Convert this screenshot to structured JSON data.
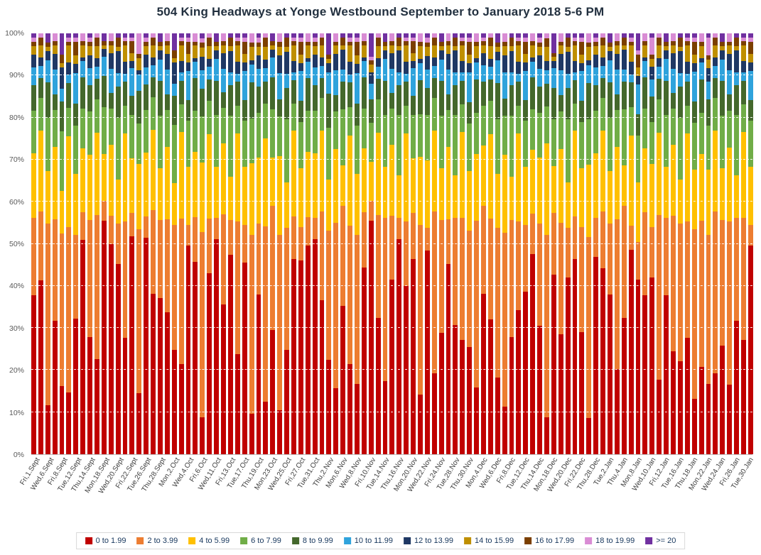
{
  "chart_data": {
    "type": "bar",
    "stacked_percent": true,
    "title": "504 King Headways at Yonge Westbound September to January 2018 5-6 PM",
    "categories": [
      "0 to 1.99",
      "2 to 3.99",
      "4 to 5.99",
      "6 to 7.99",
      "8 to 9.99",
      "10 to 11.99",
      "12 to 13.99",
      "14 to 15.99",
      "16 to 17.99",
      "18 to 19.99",
      ">= 20"
    ],
    "colors": [
      "#C00000",
      "#ED7D31",
      "#FFC000",
      "#70AD47",
      "#44682C",
      "#2FA3DC",
      "#1F3864",
      "#BF8F00",
      "#7B3F00",
      "#D98CD4",
      "#7030A0"
    ],
    "ylabel": "",
    "xlabel": "",
    "ylim": [
      0,
      100
    ],
    "grid": "dashed-white-horizontal",
    "legend_position": "bottom",
    "y_tick_labels": [
      "0%",
      "10%",
      "20%",
      "30%",
      "40%",
      "50%",
      "60%",
      "70%",
      "80%",
      "90%",
      "100%"
    ],
    "x_label_every": 2,
    "x_tick_labels": [
      "Fri,1.Sept",
      "Wed,6.Sept",
      "Fri,8.Sept",
      "Tue,12.Sept",
      "Thu,14.Sept",
      "Mon,18.Sept",
      "Wed,20.Sept",
      "Fri,22.Sept",
      "Tue,26.Sept",
      "Thu,28.Sept",
      "Mon,2.Oct",
      "Wed,4.Oct",
      "Fri,6.Oct",
      "Wed,11.Oct",
      "Fri,13.Oct",
      "Tue,17.Oct",
      "Thu,19.Oct",
      "Mon,23.Oct",
      "Wed,25.Oct",
      "Fri,27.Oct",
      "Tue,31.Oct",
      "Thu,2.Nov",
      "Mon,6.Nov",
      "Wed,8.Nov",
      "Fri,10.Nov",
      "Tue,14.Nov",
      "Thu,16.Nov",
      "Mon,20.Nov",
      "Wed,22.Nov",
      "Fri,24.Nov",
      "Tue,28.Nov",
      "Thu,30.Nov",
      "Mon,4.Dec",
      "Wed,6.Dec",
      "Fri,8.Dec",
      "Tue,12.Dec",
      "Thu,14.Dec",
      "Mon,18.Dec",
      "Wed,20.Dec",
      "Fri,22.Dec",
      "Thu,28.Dec",
      "Tue,2.Jan",
      "Thu,4.Jan",
      "Mon,8.Jan",
      "Wed,10.Jan",
      "Fri,12.Jan",
      "Tue,16.Jan",
      "Thu,18.Jan",
      "Mon,22.Jan",
      "Wed,24.Jan",
      "Fri,26.Jan",
      "Tue,30.Jan"
    ],
    "bars": [
      [
        37,
        18,
        15,
        10,
        6,
        4,
        3,
        2,
        1,
        1,
        1
      ],
      [
        43,
        17,
        20,
        8,
        5,
        3,
        2,
        3,
        2,
        1,
        0
      ],
      [
        11,
        41,
        12,
        12,
        8,
        5,
        2,
        1,
        1,
        0,
        2
      ],
      [
        33,
        25,
        18,
        9,
        4,
        6,
        4,
        2,
        1,
        2,
        0
      ],
      [
        16,
        36,
        10,
        14,
        7,
        3,
        5,
        1,
        2,
        0,
        5
      ],
      [
        15,
        40,
        22,
        7,
        6,
        2,
        3,
        4,
        1,
        1,
        1
      ],
      [
        31,
        19,
        14,
        11,
        5,
        7,
        2,
        2,
        3,
        1,
        1
      ],
      [
        54,
        7,
        16,
        10,
        8,
        4,
        1,
        3,
        1,
        2,
        0
      ],
      [
        27,
        27,
        15,
        10,
        6,
        4,
        3,
        2,
        1,
        1,
        1
      ],
      [
        23,
        35,
        20,
        8,
        5,
        3,
        2,
        3,
        2,
        1,
        0
      ],
      [
        60,
        5,
        12,
        12,
        8,
        5,
        2,
        1,
        1,
        0,
        2
      ],
      [
        53,
        7,
        18,
        9,
        4,
        6,
        4,
        2,
        1,
        2,
        0
      ],
      [
        43,
        9,
        10,
        14,
        7,
        3,
        5,
        1,
        2,
        0,
        1
      ],
      [
        29,
        29,
        22,
        7,
        6,
        2,
        3,
        4,
        1,
        1,
        1
      ],
      [
        56,
        6,
        14,
        11,
        5,
        7,
        2,
        2,
        3,
        1,
        1
      ],
      [
        15,
        40,
        16,
        10,
        8,
        4,
        1,
        3,
        1,
        5,
        0
      ],
      [
        51,
        5,
        15,
        10,
        6,
        4,
        3,
        2,
        1,
        1,
        1
      ],
      [
        40,
        21,
        20,
        8,
        5,
        3,
        2,
        3,
        2,
        1,
        0
      ],
      [
        36,
        18,
        12,
        12,
        8,
        5,
        2,
        1,
        1,
        0,
        2
      ],
      [
        35,
        23,
        18,
        9,
        4,
        6,
        4,
        2,
        1,
        2,
        0
      ],
      [
        25,
        30,
        10,
        14,
        7,
        3,
        5,
        1,
        2,
        0,
        4
      ],
      [
        23,
        37,
        22,
        7,
        6,
        2,
        3,
        4,
        1,
        1,
        1
      ],
      [
        50,
        5,
        14,
        11,
        5,
        7,
        2,
        2,
        3,
        1,
        1
      ],
      [
        47,
        11,
        16,
        10,
        8,
        4,
        1,
        3,
        1,
        2,
        0
      ],
      [
        8,
        40,
        15,
        10,
        6,
        4,
        3,
        2,
        1,
        1,
        1
      ],
      [
        43,
        13,
        20,
        8,
        5,
        3,
        2,
        3,
        2,
        1,
        0
      ],
      [
        50,
        5,
        12,
        12,
        8,
        5,
        2,
        1,
        1,
        0,
        2
      ],
      [
        38,
        23,
        18,
        9,
        4,
        6,
        4,
        2,
        1,
        2,
        0
      ],
      [
        46,
        8,
        10,
        14,
        7,
        3,
        5,
        1,
        2,
        0,
        1
      ],
      [
        25,
        33,
        22,
        7,
        6,
        2,
        3,
        4,
        1,
        1,
        1
      ],
      [
        46,
        9,
        14,
        11,
        5,
        7,
        2,
        2,
        3,
        1,
        1
      ],
      [
        9,
        40,
        16,
        10,
        8,
        4,
        1,
        3,
        1,
        2,
        0
      ],
      [
        36,
        16,
        15,
        10,
        6,
        4,
        3,
        2,
        1,
        1,
        1
      ],
      [
        12,
        40,
        20,
        8,
        5,
        3,
        2,
        3,
        2,
        1,
        0
      ],
      [
        31,
        31,
        12,
        12,
        8,
        5,
        2,
        1,
        1,
        0,
        2
      ],
      [
        10,
        40,
        18,
        9,
        4,
        6,
        4,
        2,
        1,
        2,
        0
      ],
      [
        23,
        27,
        10,
        14,
        7,
        3,
        5,
        1,
        2,
        0,
        1
      ],
      [
        50,
        11,
        22,
        7,
        6,
        2,
        3,
        4,
        1,
        1,
        1
      ],
      [
        46,
        8,
        14,
        11,
        5,
        7,
        2,
        2,
        3,
        1,
        1
      ],
      [
        51,
        7,
        16,
        10,
        8,
        4,
        1,
        3,
        1,
        2,
        0
      ],
      [
        50,
        5,
        15,
        10,
        6,
        4,
        3,
        2,
        1,
        1,
        1
      ],
      [
        38,
        22,
        20,
        8,
        5,
        3,
        2,
        3,
        2,
        1,
        0
      ],
      [
        22,
        30,
        12,
        12,
        8,
        5,
        2,
        1,
        1,
        0,
        5
      ],
      [
        16,
        40,
        18,
        9,
        4,
        6,
        4,
        2,
        1,
        2,
        0
      ],
      [
        37,
        25,
        10,
        14,
        7,
        3,
        5,
        1,
        2,
        0,
        1
      ],
      [
        22,
        34,
        22,
        7,
        6,
        2,
        3,
        4,
        1,
        1,
        1
      ],
      [
        16,
        34,
        14,
        11,
        5,
        7,
        2,
        2,
        3,
        1,
        1
      ],
      [
        47,
        14,
        16,
        10,
        8,
        4,
        1,
        3,
        1,
        2,
        0
      ],
      [
        60,
        5,
        10,
        10,
        6,
        4,
        3,
        2,
        1,
        1,
        6
      ],
      [
        33,
        25,
        20,
        8,
        5,
        3,
        2,
        3,
        2,
        1,
        0
      ],
      [
        17,
        38,
        12,
        12,
        8,
        5,
        2,
        1,
        1,
        0,
        2
      ],
      [
        44,
        16,
        18,
        9,
        4,
        6,
        4,
        2,
        1,
        2,
        0
      ],
      [
        50,
        5,
        10,
        14,
        7,
        3,
        5,
        1,
        2,
        0,
        1
      ],
      [
        42,
        16,
        22,
        7,
        6,
        2,
        3,
        4,
        1,
        1,
        1
      ],
      [
        50,
        12,
        14,
        11,
        5,
        7,
        2,
        2,
        3,
        1,
        1
      ],
      [
        14,
        40,
        16,
        10,
        8,
        4,
        1,
        3,
        1,
        2,
        0
      ],
      [
        45,
        5,
        15,
        10,
        6,
        4,
        3,
        2,
        1,
        1,
        1
      ],
      [
        20,
        40,
        20,
        8,
        5,
        3,
        2,
        3,
        2,
        1,
        0
      ],
      [
        28,
        26,
        12,
        12,
        8,
        5,
        2,
        1,
        1,
        0,
        2
      ],
      [
        47,
        11,
        18,
        9,
        4,
        6,
        4,
        2,
        1,
        2,
        0
      ],
      [
        30,
        25,
        10,
        14,
        7,
        3,
        5,
        1,
        2,
        0,
        1
      ],
      [
        29,
        31,
        22,
        7,
        6,
        2,
        3,
        4,
        1,
        1,
        1
      ],
      [
        25,
        27,
        14,
        11,
        5,
        7,
        2,
        2,
        3,
        1,
        1
      ],
      [
        16,
        40,
        16,
        10,
        8,
        4,
        1,
        3,
        1,
        2,
        0
      ],
      [
        40,
        22,
        15,
        10,
        6,
        4,
        3,
        2,
        1,
        1,
        1
      ],
      [
        32,
        24,
        20,
        8,
        5,
        3,
        2,
        3,
        2,
        1,
        0
      ],
      [
        17,
        33,
        12,
        12,
        8,
        5,
        2,
        1,
        1,
        0,
        2
      ],
      [
        11,
        40,
        18,
        9,
        4,
        6,
        4,
        2,
        1,
        2,
        0
      ],
      [
        27,
        27,
        10,
        14,
        7,
        3,
        5,
        1,
        2,
        0,
        1
      ],
      [
        36,
        22,
        22,
        7,
        6,
        2,
        3,
        4,
        1,
        1,
        1
      ],
      [
        39,
        16,
        14,
        11,
        5,
        7,
        2,
        2,
        3,
        1,
        1
      ],
      [
        50,
        10,
        16,
        10,
        8,
        4,
        1,
        3,
        1,
        2,
        0
      ],
      [
        29,
        23,
        15,
        10,
        6,
        4,
        3,
        2,
        1,
        1,
        1
      ],
      [
        8,
        40,
        20,
        8,
        5,
        3,
        2,
        3,
        2,
        1,
        0
      ],
      [
        46,
        16,
        12,
        12,
        8,
        5,
        2,
        1,
        1,
        0,
        5
      ],
      [
        29,
        27,
        18,
        9,
        4,
        6,
        4,
        2,
        1,
        2,
        0
      ],
      [
        39,
        11,
        10,
        14,
        7,
        3,
        5,
        1,
        2,
        0,
        1
      ],
      [
        50,
        11,
        22,
        7,
        6,
        2,
        3,
        4,
        1,
        1,
        1
      ],
      [
        29,
        25,
        14,
        11,
        5,
        7,
        2,
        2,
        3,
        1,
        1
      ],
      [
        8,
        40,
        16,
        10,
        8,
        4,
        1,
        3,
        1,
        2,
        0
      ],
      [
        46,
        9,
        15,
        10,
        6,
        4,
        3,
        2,
        1,
        1,
        1
      ],
      [
        46,
        14,
        20,
        8,
        5,
        3,
        2,
        3,
        2,
        1,
        0
      ],
      [
        36,
        16,
        12,
        12,
        8,
        5,
        2,
        1,
        1,
        0,
        2
      ],
      [
        21,
        37,
        18,
        9,
        4,
        6,
        4,
        2,
        1,
        2,
        0
      ],
      [
        34,
        28,
        10,
        14,
        7,
        3,
        5,
        1,
        2,
        0,
        1
      ],
      [
        50,
        6,
        22,
        7,
        6,
        2,
        3,
        4,
        1,
        1,
        1
      ],
      [
        41,
        9,
        14,
        11,
        5,
        7,
        2,
        2,
        3,
        1,
        4
      ],
      [
        40,
        21,
        16,
        10,
        8,
        4,
        1,
        3,
        1,
        2,
        0
      ],
      [
        42,
        12,
        15,
        10,
        6,
        4,
        3,
        2,
        1,
        4,
        1
      ],
      [
        18,
        40,
        20,
        8,
        5,
        3,
        2,
        3,
        2,
        1,
        0
      ],
      [
        37,
        18,
        12,
        12,
        8,
        5,
        2,
        1,
        1,
        0,
        2
      ],
      [
        26,
        34,
        18,
        9,
        4,
        6,
        4,
        2,
        1,
        2,
        0
      ],
      [
        21,
        31,
        10,
        14,
        7,
        3,
        5,
        1,
        2,
        0,
        1
      ],
      [
        29,
        29,
        22,
        7,
        6,
        2,
        3,
        4,
        1,
        1,
        1
      ],
      [
        13,
        40,
        14,
        11,
        5,
        7,
        2,
        2,
        3,
        1,
        1
      ],
      [
        21,
        35,
        16,
        10,
        8,
        4,
        1,
        3,
        1,
        2,
        0
      ],
      [
        16,
        34,
        15,
        10,
        6,
        4,
        3,
        2,
        1,
        4,
        1
      ],
      [
        20,
        40,
        20,
        8,
        5,
        3,
        2,
        3,
        2,
        1,
        0
      ],
      [
        25,
        29,
        12,
        12,
        8,
        5,
        2,
        1,
        1,
        0,
        2
      ],
      [
        17,
        40,
        18,
        9,
        4,
        6,
        4,
        2,
        1,
        2,
        0
      ],
      [
        31,
        24,
        10,
        14,
        7,
        3,
        5,
        1,
        2,
        0,
        1
      ],
      [
        29,
        31,
        22,
        7,
        6,
        2,
        3,
        4,
        1,
        1,
        1
      ],
      [
        50,
        5,
        14,
        11,
        5,
        7,
        2,
        2,
        3,
        1,
        1
      ]
    ]
  }
}
